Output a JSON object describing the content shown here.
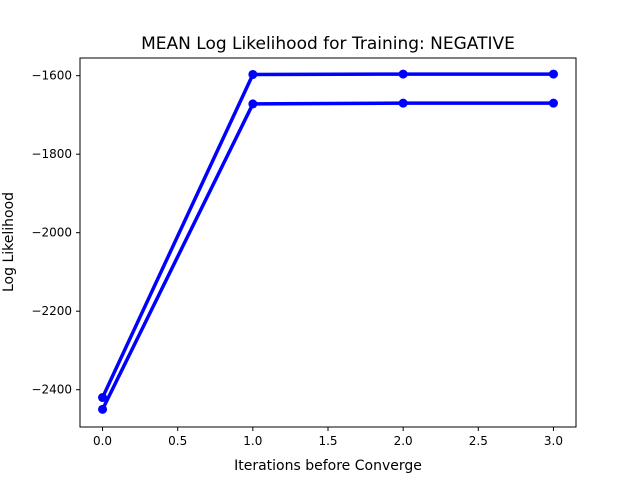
{
  "chart_data": {
    "type": "line",
    "title": "MEAN Log Likelihood for Training: NEGATIVE",
    "xlabel": "Iterations before Converge",
    "ylabel": "Log Likelihood",
    "xlim": [
      -0.15,
      3.15
    ],
    "ylim": [
      -2495,
      -1555
    ],
    "xticks": [
      0.0,
      0.5,
      1.0,
      1.5,
      2.0,
      2.5,
      3.0
    ],
    "xtick_labels": [
      "0.0",
      "0.5",
      "1.0",
      "1.5",
      "2.0",
      "2.5",
      "3.0"
    ],
    "yticks": [
      -2400,
      -2200,
      -2000,
      -1800,
      -1600
    ],
    "ytick_labels": [
      "−2400",
      "−2200",
      "−2000",
      "−1800",
      "−1600"
    ],
    "grid": false,
    "series": [
      {
        "color": "#0000ff",
        "x": [
          0,
          1,
          2,
          3
        ],
        "y": [
          -2420,
          -1597,
          -1596,
          -1596
        ]
      },
      {
        "color": "#0000ff",
        "x": [
          0,
          1,
          2,
          3
        ],
        "y": [
          -2450,
          -1672,
          -1670,
          -1670
        ]
      }
    ]
  }
}
